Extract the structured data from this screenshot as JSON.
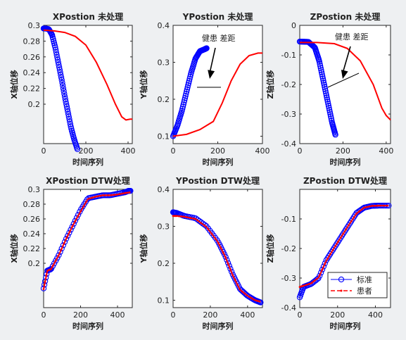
{
  "chart_data": [
    {
      "type": "line",
      "title": "XPostion 未处理",
      "xlabel": "时间序列",
      "ylabel": "X轴位移",
      "xlim": [
        0,
        420
      ],
      "ylim": [
        0.15,
        0.3
      ],
      "xticks": [
        0,
        200,
        400
      ],
      "yticks": [
        0.2,
        0.22,
        0.24,
        0.26,
        0.28,
        0.3
      ],
      "ytick_labels": [
        "0.2",
        "0.22",
        "0.24",
        "0.26",
        "0.28",
        "0.3"
      ],
      "series": [
        {
          "role": "standard",
          "x": [
            0,
            10,
            25,
            40,
            55,
            70,
            85,
            100,
            115,
            130,
            145,
            160
          ],
          "y": [
            0.296,
            0.296,
            0.295,
            0.288,
            0.272,
            0.252,
            0.232,
            0.21,
            0.19,
            0.17,
            0.155,
            0.143
          ]
        },
        {
          "role": "patient",
          "x": [
            0,
            50,
            100,
            150,
            200,
            250,
            300,
            340,
            370,
            390,
            410,
            420
          ],
          "y": [
            0.294,
            0.293,
            0.291,
            0.286,
            0.275,
            0.253,
            0.225,
            0.2,
            0.184,
            0.18,
            0.181,
            0.181
          ]
        }
      ]
    },
    {
      "type": "line",
      "title": "YPostion 未处理",
      "xlabel": "时间序列",
      "ylabel": "Y轴位移",
      "xlim": [
        0,
        400
      ],
      "ylim": [
        0.08,
        0.4
      ],
      "xticks": [
        0,
        200,
        400
      ],
      "yticks": [
        0.1,
        0.2,
        0.3,
        0.4
      ],
      "ytick_labels": [
        "0.1",
        "0.2",
        "0.3",
        "0.4"
      ],
      "annotation": "健患 差距",
      "series": [
        {
          "role": "standard",
          "x": [
            0,
            20,
            40,
            60,
            80,
            100,
            120,
            140,
            150
          ],
          "y": [
            0.1,
            0.13,
            0.17,
            0.22,
            0.27,
            0.31,
            0.33,
            0.335,
            0.338
          ]
        },
        {
          "role": "patient",
          "x": [
            0,
            60,
            120,
            180,
            220,
            260,
            300,
            340,
            380,
            400
          ],
          "y": [
            0.1,
            0.105,
            0.118,
            0.14,
            0.19,
            0.25,
            0.295,
            0.318,
            0.325,
            0.325
          ]
        }
      ]
    },
    {
      "type": "line",
      "title": "ZPostion 未处理",
      "xlabel": "时间序列",
      "ylabel": "Z轴位移",
      "xlim": [
        0,
        420
      ],
      "ylim": [
        -0.4,
        0
      ],
      "xticks": [
        0,
        200,
        400
      ],
      "yticks": [
        -0.4,
        -0.3,
        -0.2,
        -0.1,
        0
      ],
      "ytick_labels": [
        "-0.4",
        "-0.3",
        "-0.2",
        "-0.1",
        "0"
      ],
      "annotation": "健患 差距",
      "series": [
        {
          "role": "standard",
          "x": [
            0,
            40,
            70,
            90,
            110,
            130,
            150,
            165
          ],
          "y": [
            -0.055,
            -0.056,
            -0.075,
            -0.12,
            -0.19,
            -0.26,
            -0.33,
            -0.37
          ]
        },
        {
          "role": "patient",
          "x": [
            0,
            80,
            160,
            220,
            280,
            340,
            380,
            400,
            420
          ],
          "y": [
            -0.058,
            -0.058,
            -0.062,
            -0.078,
            -0.12,
            -0.2,
            -0.28,
            -0.305,
            -0.32
          ]
        }
      ]
    },
    {
      "type": "line",
      "title": "XPostion DTW处理",
      "xlabel": "时间序列",
      "ylabel": "X轴位移",
      "xlim": [
        0,
        480
      ],
      "ylim": [
        0.14,
        0.3
      ],
      "xticks": [
        0,
        200,
        400
      ],
      "yticks": [
        0.2,
        0.22,
        0.24,
        0.26,
        0.28,
        0.3
      ],
      "ytick_labels": [
        "0.2",
        "0.22",
        "0.24",
        "0.26",
        "0.28",
        "0.3"
      ],
      "series": [
        {
          "role": "standard",
          "x": [
            0,
            20,
            40,
            80,
            120,
            160,
            200,
            240,
            280,
            320,
            360,
            400,
            440,
            460,
            470
          ],
          "y": [
            0.166,
            0.19,
            0.192,
            0.21,
            0.232,
            0.252,
            0.272,
            0.288,
            0.29,
            0.292,
            0.292,
            0.294,
            0.296,
            0.298,
            0.298
          ]
        },
        {
          "role": "patient",
          "x": [
            0,
            20,
            40,
            80,
            120,
            160,
            200,
            240,
            280,
            320,
            360,
            400,
            440,
            470
          ],
          "y": [
            0.165,
            0.19,
            0.192,
            0.21,
            0.232,
            0.252,
            0.27,
            0.287,
            0.29,
            0.292,
            0.292,
            0.293,
            0.295,
            0.296
          ]
        }
      ]
    },
    {
      "type": "line",
      "title": "YPostion DTW处理",
      "xlabel": "时间序列",
      "ylabel": "Y轴位移",
      "xlim": [
        0,
        480
      ],
      "ylim": [
        0.08,
        0.4
      ],
      "xticks": [
        0,
        200,
        400
      ],
      "yticks": [
        0.1,
        0.2,
        0.3,
        0.4
      ],
      "ytick_labels": [
        "0.1",
        "0.2",
        "0.3",
        "0.4"
      ],
      "series": [
        {
          "role": "standard",
          "x": [
            0,
            20,
            60,
            120,
            180,
            240,
            280,
            320,
            360,
            400,
            440,
            470
          ],
          "y": [
            0.338,
            0.336,
            0.328,
            0.322,
            0.3,
            0.26,
            0.22,
            0.17,
            0.13,
            0.112,
            0.1,
            0.094
          ]
        },
        {
          "role": "patient",
          "x": [
            0,
            20,
            60,
            120,
            180,
            240,
            280,
            320,
            360,
            400,
            440,
            470
          ],
          "y": [
            0.328,
            0.328,
            0.326,
            0.32,
            0.298,
            0.258,
            0.218,
            0.168,
            0.128,
            0.112,
            0.1,
            0.096
          ]
        }
      ]
    },
    {
      "type": "line",
      "title": "ZPostion DTW处理",
      "xlabel": "时间序列",
      "ylabel": "Z轴位移",
      "xlim": [
        0,
        480
      ],
      "ylim": [
        -0.4,
        0
      ],
      "xticks": [
        0,
        200,
        400
      ],
      "yticks": [
        -0.4,
        -0.3,
        -0.2,
        -0.1
      ],
      "ytick_labels": [
        "-0.4",
        "-0.3",
        "-0.2",
        "-0.1"
      ],
      "series": [
        {
          "role": "standard",
          "x": [
            0,
            20,
            60,
            100,
            140,
            180,
            220,
            260,
            300,
            340,
            380,
            420,
            470
          ],
          "y": [
            -0.365,
            -0.33,
            -0.32,
            -0.3,
            -0.24,
            -0.2,
            -0.16,
            -0.12,
            -0.08,
            -0.062,
            -0.056,
            -0.055,
            -0.055
          ]
        },
        {
          "role": "patient",
          "x": [
            0,
            20,
            60,
            100,
            140,
            180,
            220,
            260,
            300,
            340,
            380,
            420,
            470
          ],
          "y": [
            -0.33,
            -0.326,
            -0.318,
            -0.298,
            -0.242,
            -0.2,
            -0.16,
            -0.12,
            -0.082,
            -0.062,
            -0.056,
            -0.055,
            -0.055
          ]
        }
      ]
    }
  ],
  "legend": {
    "standard": "标准",
    "patient": "患者"
  },
  "colors": {
    "standard": "#0000ff",
    "patient": "#ff0000",
    "annotation": "#000000"
  }
}
